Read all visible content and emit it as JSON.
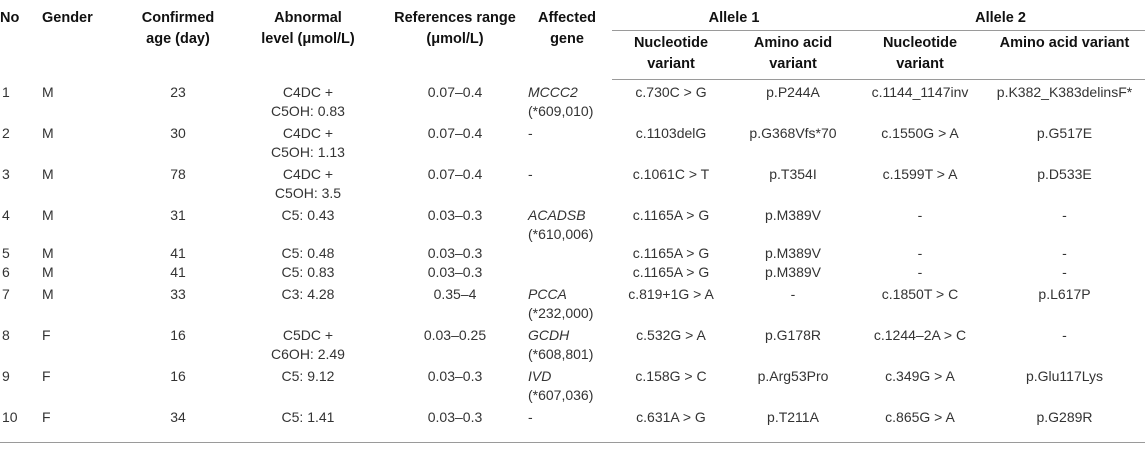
{
  "headers": {
    "no": "No",
    "gender": "Gender",
    "confirmed_age": "Confirmed age (day)",
    "abnormal_level": "Abnormal level (μmol/L)",
    "references_range": "References range (μmol/L)",
    "affected_gene": "Affected gene",
    "allele1": "Allele 1",
    "allele2": "Allele 2",
    "nucleotide_variant": "Nucleotide variant",
    "amino_acid_variant": "Amino acid variant"
  },
  "rows": [
    {
      "no": "1",
      "gender": "M",
      "age": "23",
      "level": "C4DC + C5OH: 0.83",
      "range": "0.07–0.4",
      "gene": "MCCC2",
      "gene_id": "(*609,010)",
      "a1_nuc": "c.730C > G",
      "a1_aa": "p.P244A",
      "a2_nuc": "c.1144_1147inv",
      "a2_aa": "p.K382_K383delinsF*"
    },
    {
      "no": "2",
      "gender": "M",
      "age": "30",
      "level": "C4DC + C5OH: 1.13",
      "range": "0.07–0.4",
      "gene": "-",
      "gene_id": "",
      "a1_nuc": "c.1103delG",
      "a1_aa": "p.G368Vfs*70",
      "a2_nuc": "c.1550G > A",
      "a2_aa": "p.G517E"
    },
    {
      "no": "3",
      "gender": "M",
      "age": "78",
      "level": "C4DC + C5OH: 3.5",
      "range": "0.07–0.4",
      "gene": "-",
      "gene_id": "",
      "a1_nuc": "c.1061C > T",
      "a1_aa": "p.T354I",
      "a2_nuc": "c.1599T > A",
      "a2_aa": "p.D533E"
    },
    {
      "no": "4",
      "gender": "M",
      "age": "31",
      "level": "C5: 0.43",
      "range": "0.03–0.3",
      "gene": "ACADSB",
      "gene_id": "(*610,006)",
      "a1_nuc": "c.1165A > G",
      "a1_aa": "p.M389V",
      "a2_nuc": "-",
      "a2_aa": "-"
    },
    {
      "no": "5",
      "gender": "M",
      "age": "41",
      "level": "C5: 0.48",
      "range": "0.03–0.3",
      "gene": "",
      "gene_id": "",
      "a1_nuc": "c.1165A > G",
      "a1_aa": "p.M389V",
      "a2_nuc": "-",
      "a2_aa": "-"
    },
    {
      "no": "6",
      "gender": "M",
      "age": "41",
      "level": "C5: 0.83",
      "range": "0.03–0.3",
      "gene": "",
      "gene_id": "",
      "a1_nuc": "c.1165A > G",
      "a1_aa": "p.M389V",
      "a2_nuc": "-",
      "a2_aa": "-"
    },
    {
      "no": "7",
      "gender": "M",
      "age": "33",
      "level": "C3: 4.28",
      "range": "0.35–4",
      "gene": "PCCA",
      "gene_id": "(*232,000)",
      "a1_nuc": "c.819+1G > A",
      "a1_aa": "-",
      "a2_nuc": "c.1850T > C",
      "a2_aa": "p.L617P"
    },
    {
      "no": "8",
      "gender": "F",
      "age": "16",
      "level": "C5DC + C6OH: 2.49",
      "range": "0.03–0.25",
      "gene": "GCDH",
      "gene_id": "(*608,801)",
      "a1_nuc": "c.532G > A",
      "a1_aa": "p.G178R",
      "a2_nuc": "c.1244–2A > C",
      "a2_aa": "-"
    },
    {
      "no": "9",
      "gender": "F",
      "age": "16",
      "level": "C5: 9.12",
      "range": "0.03–0.3",
      "gene": "IVD",
      "gene_id": "(*607,036)",
      "a1_nuc": "c.158G > C",
      "a1_aa": "p.Arg53Pro",
      "a2_nuc": "c.349G > A",
      "a2_aa": "p.Glu117Lys"
    },
    {
      "no": "10",
      "gender": "F",
      "age": "34",
      "level": "C5: 1.41",
      "range": "0.03–0.3",
      "gene": "-",
      "gene_id": "",
      "a1_nuc": "c.631A > G",
      "a1_aa": "p.T211A",
      "a2_nuc": "c.865G > A",
      "a2_aa": "p.G289R"
    }
  ]
}
